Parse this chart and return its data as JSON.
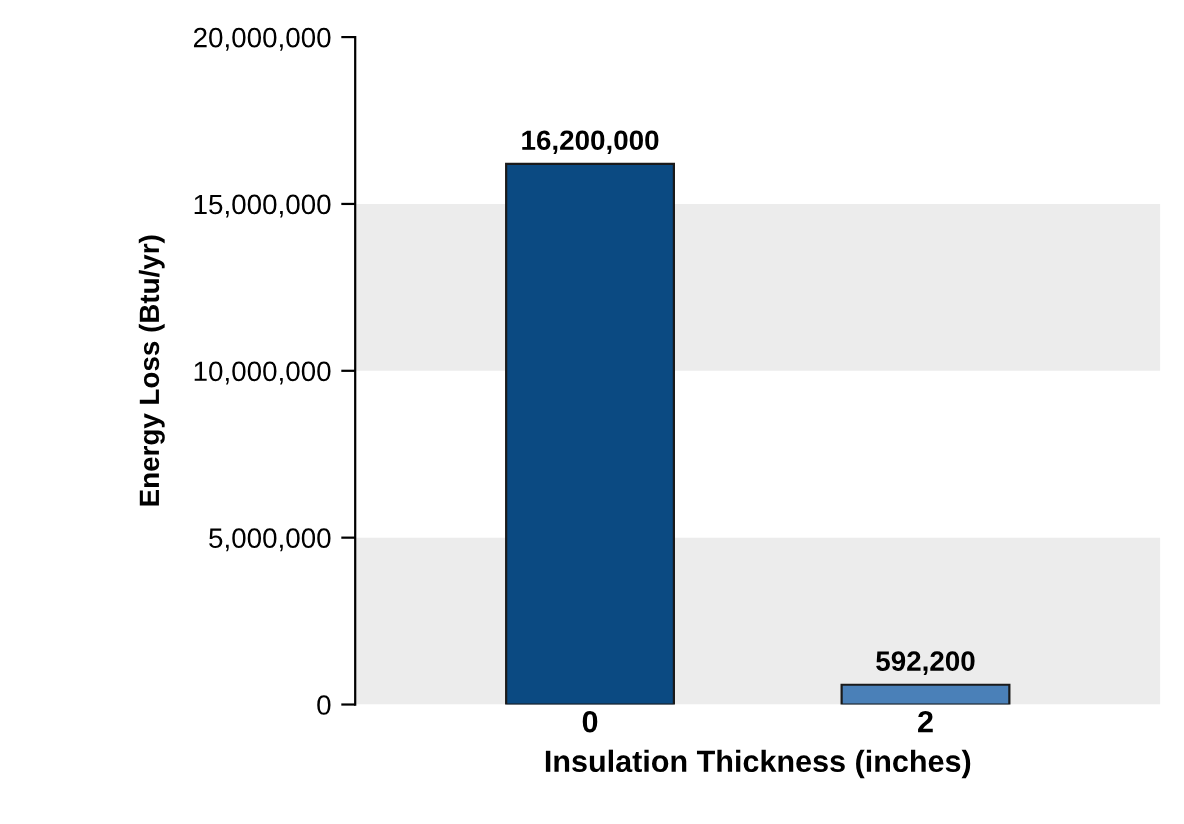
{
  "chart_data": {
    "type": "bar",
    "xlabel": "Insulation Thickness (inches)",
    "ylabel": "Energy Loss (Btu/yr)",
    "categories": [
      "0",
      "2"
    ],
    "values": [
      16200000,
      592200
    ],
    "colors": [
      "#0b4a82",
      "#4a80b8"
    ],
    "value_labels": [
      "16,200,000",
      "592,200"
    ],
    "ylim": [
      0,
      20000000
    ],
    "yticks": [
      {
        "value": 0,
        "label": "0"
      },
      {
        "value": 5000000,
        "label": "5,000,000"
      },
      {
        "value": 10000000,
        "label": "10,000,000"
      },
      {
        "value": 15000000,
        "label": "15,000,000"
      },
      {
        "value": 20000000,
        "label": "20,000,000"
      }
    ],
    "bands": [
      {
        "axis": "y",
        "from": 0,
        "to": 5000000,
        "color": "#ececec"
      },
      {
        "axis": "y",
        "from": 10000000,
        "to": 15000000,
        "color": "#ececec"
      }
    ],
    "grid": false
  }
}
